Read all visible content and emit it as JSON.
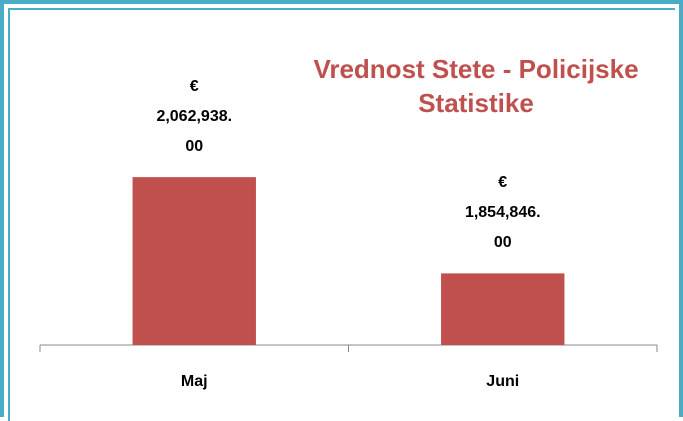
{
  "chart_data": {
    "type": "bar",
    "title": "Vrednost Stete - Policijske Statistike",
    "categories": [
      "Maj",
      "Juni"
    ],
    "values": [
      2062938.0,
      1854846.0
    ],
    "value_labels": [
      "€ 2,062,938.00",
      "€ 1,854,846.00"
    ],
    "color": "#c0504d",
    "ylim": [
      1700000,
      2100000
    ]
  }
}
